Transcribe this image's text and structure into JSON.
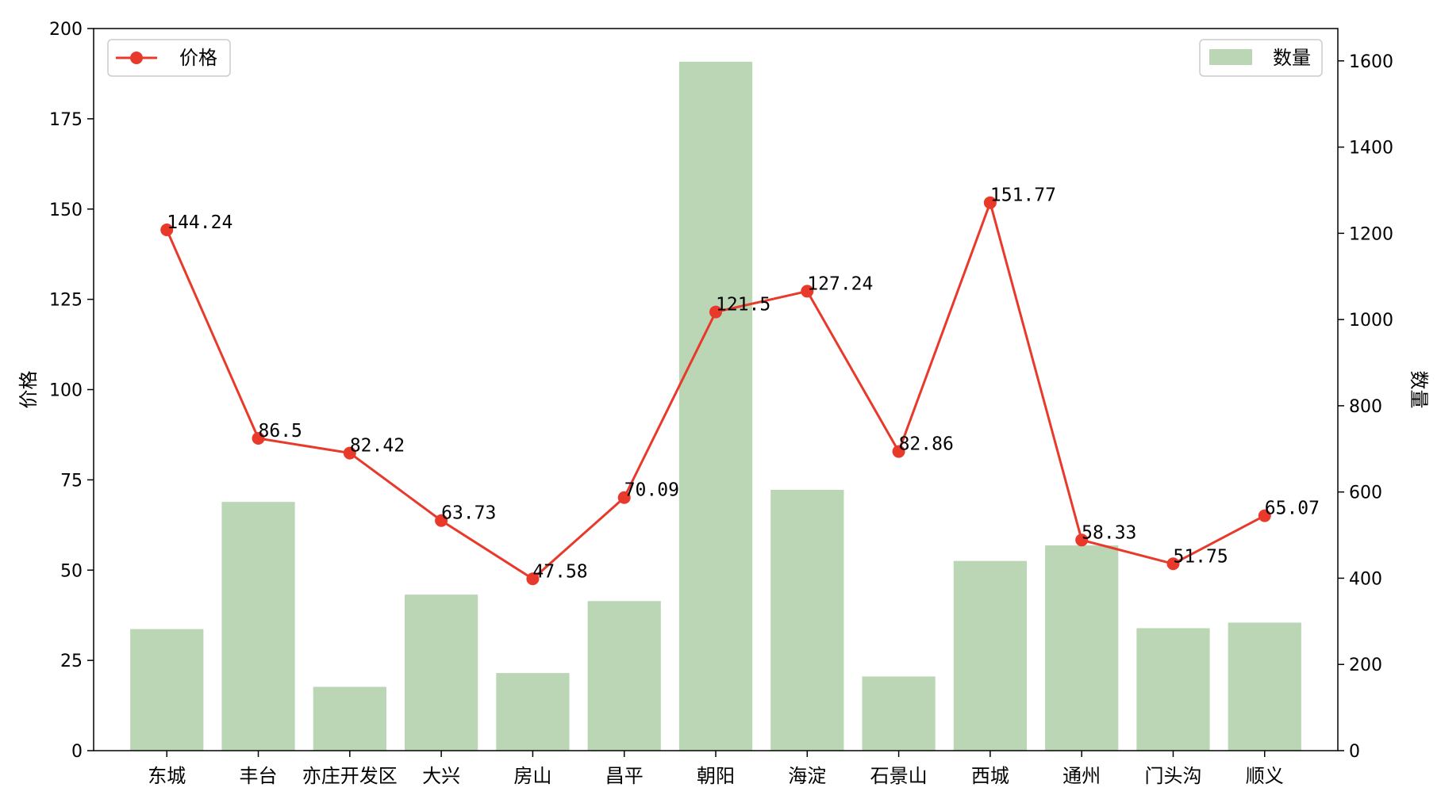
{
  "chart_data": {
    "type": "bar+line",
    "categories": [
      "东城",
      "丰台",
      "亦庄开发区",
      "大兴",
      "房山",
      "昌平",
      "朝阳",
      "海淀",
      "石景山",
      "西城",
      "通州",
      "门头沟",
      "顺义"
    ],
    "series": [
      {
        "name": "价格",
        "type": "line",
        "axis": "left",
        "color": "#e8392a",
        "values": [
          144.24,
          86.5,
          82.42,
          63.73,
          47.58,
          70.09,
          121.5,
          127.24,
          82.86,
          151.77,
          58.33,
          51.75,
          65.07
        ],
        "data_labels": [
          "144.24",
          "86.5",
          "82.42",
          "63.73",
          "47.58",
          "70.09",
          "121.5",
          "127.24",
          "82.86",
          "151.77",
          "58.33",
          "51.75",
          "65.07"
        ]
      },
      {
        "name": "数量",
        "type": "bar",
        "axis": "right",
        "color": "#bad6b5",
        "values": [
          282,
          577,
          148,
          362,
          180,
          347,
          1598,
          605,
          172,
          440,
          476,
          284,
          297
        ]
      }
    ],
    "y_left": {
      "label": "价格",
      "ylim": [
        0,
        200
      ],
      "ticks": [
        "0",
        "25",
        "50",
        "75",
        "100",
        "125",
        "150",
        "175",
        "200"
      ]
    },
    "y_right": {
      "label": "数量",
      "ylim": [
        0,
        1675
      ],
      "ticks": [
        "0",
        "200",
        "400",
        "600",
        "800",
        "1000",
        "1200",
        "1400",
        "1600"
      ]
    },
    "legends": [
      {
        "series": "价格",
        "placement": "upper-left"
      },
      {
        "series": "数量",
        "placement": "upper-right"
      }
    ],
    "grid": false
  }
}
